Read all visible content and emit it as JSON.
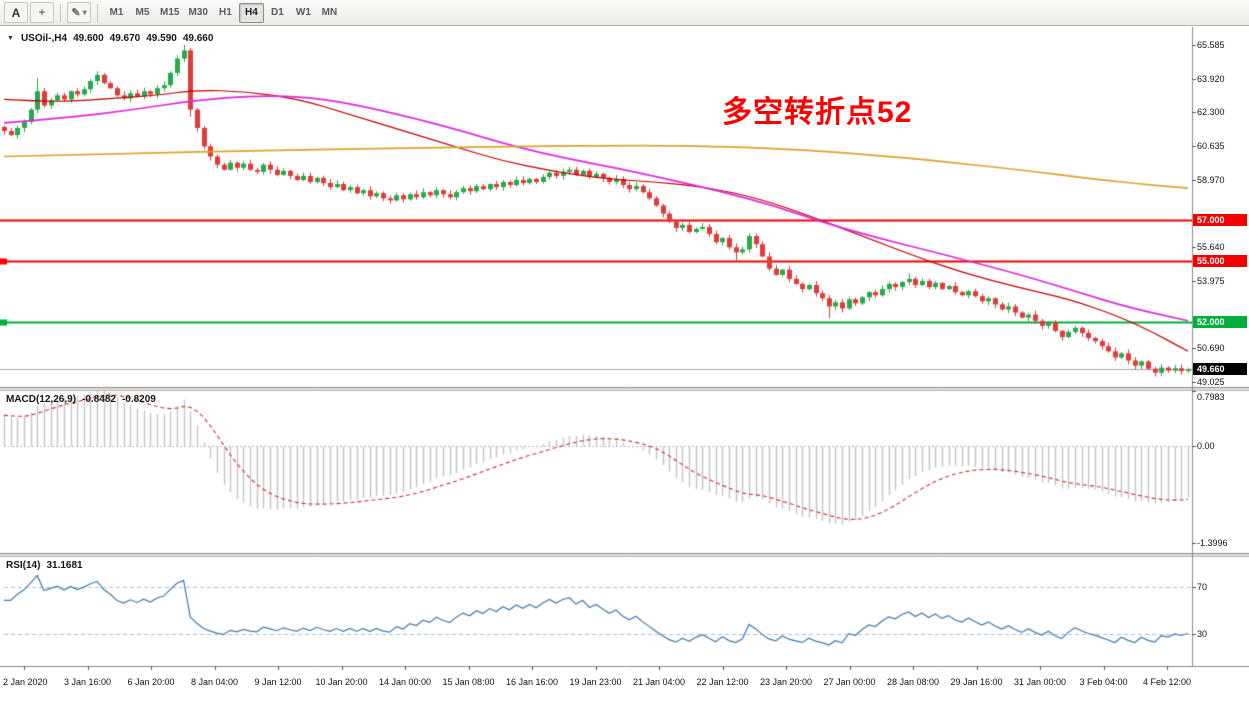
{
  "toolbar": {
    "text_tool_label": "A",
    "timeframes": [
      "M1",
      "M5",
      "M15",
      "M30",
      "H1",
      "H4",
      "D1",
      "W1",
      "MN"
    ],
    "active_timeframe": "H4"
  },
  "chart_header": {
    "symbol": "USOil-,H4",
    "open": "49.600",
    "high": "49.670",
    "low": "49.590",
    "close": "49.660"
  },
  "annotation": {
    "text": "多空转折点52",
    "color": "#FF0000"
  },
  "price_axis": {
    "ticks": [
      {
        "v": 65.585,
        "label": "65.585"
      },
      {
        "v": 63.92,
        "label": "63.920"
      },
      {
        "v": 62.3,
        "label": "62.300"
      },
      {
        "v": 60.635,
        "label": "60.635"
      },
      {
        "v": 58.97,
        "label": "58.970"
      },
      {
        "v": 55.64,
        "label": "55.640"
      },
      {
        "v": 53.975,
        "label": "53.975"
      },
      {
        "v": 50.69,
        "label": "50.690"
      },
      {
        "v": 49.025,
        "label": "49.025"
      }
    ]
  },
  "hlines": [
    {
      "price": 57.0,
      "label": "57.000",
      "color": "#F40000",
      "left_marker": false
    },
    {
      "price": 55.0,
      "label": "55.000",
      "color": "#F40000",
      "left_marker": true
    },
    {
      "price": 52.0,
      "label": "52.000",
      "color": "#00AE3C",
      "left_marker": true
    }
  ],
  "current_price": {
    "value": 49.66,
    "label": "49.660",
    "line_color": "#A8A8A8",
    "badge_bg": "#000000"
  },
  "macd": {
    "label": "MACD(12,26,9)",
    "value_main": "-0.8482",
    "value_signal": "-0.8209",
    "scale": [
      {
        "v": 0.7983,
        "label": "0.7983"
      },
      {
        "v": 0,
        "label": "0.00"
      },
      {
        "v": -1.3996,
        "label": "-1.3996"
      }
    ],
    "histogram_color": "#C4C4C4",
    "signal_color": "#D03030"
  },
  "rsi": {
    "label": "RSI(14)",
    "value": "31.1681",
    "line_color": "#4179AD",
    "level_color": "#A9C2DA",
    "levels": [
      {
        "v": 70,
        "label": "70"
      },
      {
        "v": 30,
        "label": "30"
      }
    ]
  },
  "time_axis": {
    "labels": [
      "2 Jan 2020",
      "3 Jan 16:00",
      "6 Jan 20:00",
      "8 Jan 04:00",
      "9 Jan 12:00",
      "10 Jan 20:00",
      "14 Jan 00:00",
      "15 Jan 08:00",
      "16 Jan 16:00",
      "19 Jan 23:00",
      "21 Jan 04:00",
      "22 Jan 12:00",
      "23 Jan 20:00",
      "27 Jan 00:00",
      "28 Jan 08:00",
      "29 Jan 16:00",
      "31 Jan 00:00",
      "3 Feb 04:00",
      "4 Feb 12:00"
    ]
  },
  "chart_data": {
    "type": "candlestick",
    "symbol": "USOil",
    "timeframe": "H4",
    "up_color": "#28A94E",
    "down_color": "#E23B3B",
    "price_axis_range": [
      66.45,
      48.8
    ],
    "macd_axis_range": [
      0.8,
      -1.543
    ],
    "rsi_axis_range": [
      95,
      3
    ],
    "first_open": 61.55,
    "closes": [
      61.35,
      61.15,
      61.5,
      61.8,
      62.4,
      63.3,
      62.6,
      62.85,
      63.1,
      62.9,
      63.3,
      63.15,
      63.4,
      63.8,
      64.1,
      63.7,
      63.45,
      63.1,
      62.95,
      63.2,
      63.05,
      63.3,
      63.15,
      63.45,
      63.6,
      64.2,
      64.9,
      65.3,
      62.4,
      61.5,
      60.6,
      60.1,
      59.7,
      59.45,
      59.8,
      59.55,
      59.75,
      59.45,
      59.35,
      59.7,
      59.45,
      59.2,
      59.4,
      59.15,
      58.95,
      59.15,
      58.85,
      59.05,
      58.8,
      58.6,
      58.75,
      58.45,
      58.6,
      58.3,
      58.45,
      58.15,
      58.3,
      58.05,
      57.95,
      58.2,
      58.0,
      58.25,
      58.1,
      58.35,
      58.2,
      58.45,
      58.25,
      58.1,
      58.35,
      58.55,
      58.4,
      58.65,
      58.5,
      58.75,
      58.6,
      58.85,
      58.7,
      58.95,
      58.8,
      59.0,
      58.85,
      59.1,
      59.3,
      59.15,
      59.35,
      59.45,
      59.2,
      59.4,
      59.1,
      59.25,
      59.05,
      58.85,
      59.0,
      58.7,
      58.5,
      58.65,
      58.35,
      58.05,
      57.7,
      57.3,
      56.9,
      56.6,
      56.75,
      56.4,
      56.55,
      56.65,
      56.3,
      55.9,
      56.1,
      55.65,
      55.4,
      55.55,
      56.2,
      55.8,
      55.2,
      54.6,
      54.3,
      54.55,
      54.1,
      53.85,
      53.6,
      53.8,
      53.4,
      53.15,
      52.75,
      52.95,
      52.65,
      53.1,
      52.9,
      53.2,
      53.45,
      53.3,
      53.6,
      53.85,
      53.7,
      53.95,
      54.1,
      53.8,
      54.0,
      53.7,
      53.9,
      53.6,
      53.75,
      53.45,
      53.3,
      53.5,
      53.25,
      53.0,
      53.15,
      52.85,
      52.6,
      52.75,
      52.45,
      52.2,
      52.35,
      52.05,
      51.8,
      51.95,
      51.55,
      51.25,
      51.5,
      51.7,
      51.45,
      51.2,
      51.05,
      50.8,
      50.55,
      50.25,
      50.45,
      50.1,
      49.85,
      50.05,
      49.7,
      49.5,
      49.75,
      49.6,
      49.72,
      49.58,
      49.66
    ],
    "wick_overrides": {
      "5": {
        "h": 63.95
      },
      "14": {
        "h": 64.28
      },
      "27": {
        "h": 65.585
      },
      "28": {
        "h": 65.42,
        "l": 62.05
      },
      "58": {
        "l": 57.78
      },
      "110": {
        "l": 54.95
      },
      "124": {
        "l": 52.18
      },
      "136": {
        "h": 54.38
      },
      "173": {
        "l": 49.31
      }
    },
    "moving_averages": [
      {
        "name": "fast-ma",
        "color": "#C00000",
        "width": 1.2,
        "points": [
          [
            0,
            62.9
          ],
          [
            0.045,
            62.75
          ],
          [
            0.09,
            62.95
          ],
          [
            0.13,
            63.1
          ],
          [
            0.16,
            63.35
          ],
          [
            0.205,
            63.3
          ],
          [
            0.25,
            62.9
          ],
          [
            0.29,
            62.2
          ],
          [
            0.335,
            61.4
          ],
          [
            0.38,
            60.6
          ],
          [
            0.42,
            59.9
          ],
          [
            0.465,
            59.35
          ],
          [
            0.51,
            59.0
          ],
          [
            0.55,
            58.85
          ],
          [
            0.595,
            58.6
          ],
          [
            0.64,
            58.0
          ],
          [
            0.68,
            57.2
          ],
          [
            0.725,
            56.2
          ],
          [
            0.77,
            55.2
          ],
          [
            0.81,
            54.4
          ],
          [
            0.855,
            53.7
          ],
          [
            0.9,
            53.1
          ],
          [
            0.94,
            52.3
          ],
          [
            0.97,
            51.5
          ],
          [
            1,
            50.55
          ]
        ]
      },
      {
        "name": "mid-ma",
        "color": "#DD2BDD",
        "width": 1.7,
        "points": [
          [
            0,
            61.75
          ],
          [
            0.055,
            62.0
          ],
          [
            0.11,
            62.4
          ],
          [
            0.16,
            62.85
          ],
          [
            0.215,
            63.1
          ],
          [
            0.26,
            63.0
          ],
          [
            0.3,
            62.6
          ],
          [
            0.345,
            62.0
          ],
          [
            0.39,
            61.3
          ],
          [
            0.43,
            60.6
          ],
          [
            0.475,
            60.0
          ],
          [
            0.52,
            59.5
          ],
          [
            0.56,
            59.0
          ],
          [
            0.605,
            58.4
          ],
          [
            0.65,
            57.7
          ],
          [
            0.69,
            56.9
          ],
          [
            0.735,
            56.15
          ],
          [
            0.78,
            55.5
          ],
          [
            0.82,
            54.9
          ],
          [
            0.865,
            54.2
          ],
          [
            0.91,
            53.4
          ],
          [
            0.95,
            52.7
          ],
          [
            1,
            52.05
          ]
        ]
      },
      {
        "name": "slow-ma",
        "color": "#DBA32E",
        "width": 1.7,
        "points": [
          [
            0,
            60.1
          ],
          [
            0.11,
            60.25
          ],
          [
            0.22,
            60.4
          ],
          [
            0.33,
            60.5
          ],
          [
            0.43,
            60.6
          ],
          [
            0.54,
            60.65
          ],
          [
            0.6,
            60.6
          ],
          [
            0.65,
            60.5
          ],
          [
            0.7,
            60.32
          ],
          [
            0.76,
            60.05
          ],
          [
            0.81,
            59.75
          ],
          [
            0.865,
            59.4
          ],
          [
            0.92,
            59.0
          ],
          [
            0.96,
            58.75
          ],
          [
            1,
            58.55
          ]
        ]
      }
    ],
    "macd_params": [
      12,
      26,
      9
    ],
    "rsi_period": 14
  }
}
